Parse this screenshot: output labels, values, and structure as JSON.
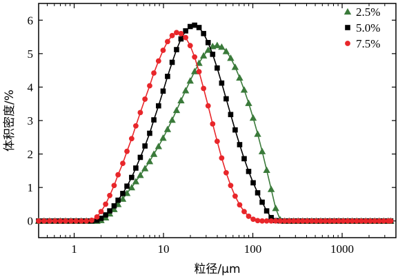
{
  "chart_data": {
    "type": "line",
    "xscale": "log",
    "xlim": [
      0.4,
      4000
    ],
    "ylim": [
      -0.5,
      6.5
    ],
    "xlabel": "粒径/μm",
    "ylabel": "体积密度/%",
    "xticks": [
      1,
      10,
      100,
      1000
    ],
    "xtick_labels": [
      "1",
      "10",
      "100",
      "1000"
    ],
    "yticks": [
      0,
      1,
      2,
      3,
      4,
      5,
      6
    ],
    "ytick_labels": [
      "0",
      "1",
      "2",
      "3",
      "4",
      "5",
      "6"
    ],
    "legend_position": "top-right",
    "series": [
      {
        "name": "2.5%",
        "color": "#3a7a3a",
        "marker": "triangle",
        "x": [
          0.4,
          0.46,
          0.53,
          0.61,
          0.7,
          0.8,
          0.92,
          1.05,
          1.2,
          1.37,
          1.57,
          1.8,
          2.0,
          2.25,
          2.5,
          2.8,
          3.1,
          3.5,
          3.9,
          4.4,
          4.9,
          5.5,
          6.2,
          7.0,
          7.8,
          8.8,
          9.9,
          11.1,
          12.5,
          14.0,
          15.7,
          17.7,
          19.9,
          22.3,
          25.0,
          28.1,
          31.6,
          35.5,
          39.9,
          44.8,
          50.3,
          56.5,
          63.4,
          71.2,
          80.0,
          89.8,
          100.9,
          113.3,
          127.2,
          142.9,
          160.5,
          180.2,
          202.4,
          227.3,
          255.3,
          286.7,
          322.0,
          361.6,
          406.1,
          456.1,
          512.2,
          575.2,
          646.0,
          725.5,
          814.8,
          915.1,
          1027.7,
          1154.2,
          1296.2,
          1455.7,
          1634.8,
          1836.0,
          2061.9,
          2315.6,
          2600.5,
          2920.5,
          3279.8,
          3500
        ],
        "y": [
          0,
          0,
          0,
          0,
          0,
          0,
          0,
          0,
          0,
          0,
          0,
          0,
          0.02,
          0.1,
          0.22,
          0.35,
          0.5,
          0.66,
          0.83,
          1.0,
          1.18,
          1.37,
          1.57,
          1.78,
          2.0,
          2.23,
          2.48,
          2.74,
          3.02,
          3.31,
          3.6,
          3.9,
          4.19,
          4.47,
          4.72,
          4.94,
          5.11,
          5.22,
          5.25,
          5.2,
          5.07,
          4.87,
          4.6,
          4.28,
          3.92,
          3.52,
          3.08,
          2.6,
          2.08,
          1.52,
          0.95,
          0.38,
          0.04,
          0,
          0,
          0,
          0,
          0,
          0,
          0,
          0,
          0,
          0,
          0,
          0,
          0,
          0,
          0,
          0,
          0,
          0,
          0,
          0,
          0,
          0,
          0,
          0,
          0
        ]
      },
      {
        "name": "5.0%",
        "color": "#000000",
        "marker": "square",
        "x": [
          0.4,
          0.46,
          0.53,
          0.61,
          0.7,
          0.8,
          0.92,
          1.05,
          1.2,
          1.37,
          1.57,
          1.8,
          2.0,
          2.25,
          2.5,
          2.8,
          3.1,
          3.5,
          3.9,
          4.4,
          4.9,
          5.5,
          6.2,
          7.0,
          7.8,
          8.8,
          9.9,
          11.1,
          12.5,
          14.0,
          15.7,
          17.7,
          19.9,
          22.3,
          25.0,
          28.1,
          31.6,
          35.5,
          39.9,
          44.8,
          50.3,
          56.5,
          63.4,
          71.2,
          80.0,
          89.8,
          100.9,
          113.3,
          127.2,
          142.9,
          160.5,
          180.2,
          202.4,
          227.3,
          255.3,
          286.7,
          322.0,
          361.6,
          406.1,
          456.1,
          512.2,
          575.2,
          646.0,
          725.5,
          814.8,
          915.1,
          1027.7,
          1154.2,
          1296.2,
          1455.7,
          1634.8,
          1836.0,
          2061.9,
          2315.6,
          2600.5,
          2920.5,
          3279.8,
          3500
        ],
        "y": [
          0,
          0,
          0,
          0,
          0,
          0,
          0,
          0,
          0,
          0,
          0,
          0.02,
          0.08,
          0.18,
          0.3,
          0.45,
          0.62,
          0.82,
          1.04,
          1.3,
          1.58,
          1.9,
          2.24,
          2.62,
          3.02,
          3.44,
          3.88,
          4.32,
          4.74,
          5.12,
          5.44,
          5.68,
          5.81,
          5.85,
          5.78,
          5.6,
          5.33,
          4.98,
          4.57,
          4.12,
          3.65,
          3.18,
          2.72,
          2.28,
          1.86,
          1.48,
          1.14,
          0.84,
          0.56,
          0.3,
          0.1,
          0.01,
          0,
          0,
          0,
          0,
          0,
          0,
          0,
          0,
          0,
          0,
          0,
          0,
          0,
          0,
          0,
          0,
          0,
          0,
          0,
          0,
          0,
          0,
          0,
          0,
          0,
          0
        ]
      },
      {
        "name": "7.5%",
        "color": "#e8262a",
        "marker": "circle",
        "x": [
          0.4,
          0.46,
          0.53,
          0.61,
          0.7,
          0.8,
          0.92,
          1.05,
          1.2,
          1.37,
          1.57,
          1.8,
          2.0,
          2.25,
          2.5,
          2.8,
          3.1,
          3.5,
          3.9,
          4.4,
          4.9,
          5.5,
          6.2,
          7.0,
          7.8,
          8.8,
          9.9,
          11.1,
          12.5,
          14.0,
          15.7,
          17.7,
          19.9,
          22.3,
          25.0,
          28.1,
          31.6,
          35.5,
          39.9,
          44.8,
          50.3,
          56.5,
          63.4,
          71.2,
          80.0,
          89.8,
          100.9,
          113.3,
          127.2,
          142.9,
          160.5,
          180.2,
          202.4,
          227.3,
          255.3,
          286.7,
          322.0,
          361.6,
          406.1,
          456.1,
          512.2,
          575.2,
          646.0,
          725.5,
          814.8,
          915.1,
          1027.7,
          1154.2,
          1296.2,
          1455.7,
          1634.8,
          1836.0,
          2061.9,
          2315.6,
          2600.5,
          2920.5,
          3279.8,
          3500
        ],
        "y": [
          0,
          0,
          0,
          0,
          0,
          0,
          0,
          0,
          0,
          0,
          0.02,
          0.12,
          0.28,
          0.5,
          0.76,
          1.06,
          1.38,
          1.72,
          2.08,
          2.46,
          2.84,
          3.24,
          3.64,
          4.04,
          4.42,
          4.78,
          5.1,
          5.36,
          5.54,
          5.63,
          5.6,
          5.48,
          5.24,
          4.9,
          4.46,
          3.96,
          3.44,
          2.9,
          2.38,
          1.88,
          1.44,
          1.06,
          0.74,
          0.48,
          0.28,
          0.14,
          0.05,
          0.01,
          0,
          0,
          0,
          0,
          0,
          0,
          0,
          0,
          0,
          0,
          0,
          0,
          0,
          0,
          0,
          0,
          0,
          0,
          0,
          0,
          0,
          0,
          0,
          0,
          0,
          0,
          0,
          0,
          0,
          0
        ]
      }
    ]
  }
}
